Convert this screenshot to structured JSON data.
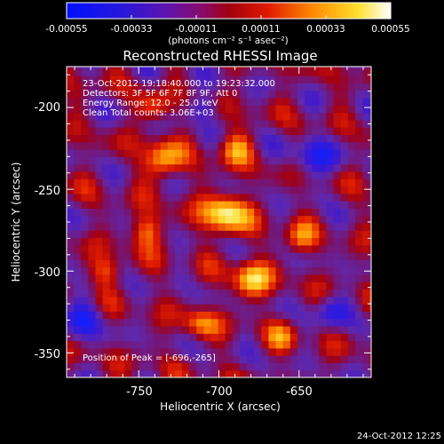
{
  "colorbar": {
    "ticks": [
      "-0.00055",
      "-0.00033",
      "-0.00011",
      "0.00011",
      "0.00033",
      "0.00055"
    ],
    "unit_label": "(photons cm⁻² s⁻¹ asec⁻²)",
    "range": [
      -0.00055,
      0.00055
    ],
    "colormap": [
      "#1020ff",
      "#3d18cf",
      "#6a17a8",
      "#b0157c",
      "#d81a1a",
      "#ff7a00",
      "#ffd000",
      "#ffffff"
    ]
  },
  "overlay": {
    "time_range": "23-Oct-2012 19:18:40.000 to 19:23:32.000",
    "detectors": "Detectors: 3F 5F 6F 7F 8F 9F, Att 0",
    "energy": "Energy Range: 12.0 - 25.0 keV",
    "clean": "Clean    Total counts: 3.06E+03",
    "peak": "Position of Peak = [-696,-265]"
  },
  "footer": {
    "timestamp": "24-Oct-2012 12:25"
  },
  "chart_data": {
    "type": "heatmap",
    "title": "Reconstructed RHESSI Image",
    "xlabel": "Heliocentric X (arcsec)",
    "ylabel": "Heliocentric Y (arcsec)",
    "xlim": [
      -795,
      -605
    ],
    "ylim": [
      -365,
      -175
    ],
    "x_ticks": [
      -750,
      -700,
      -650
    ],
    "y_ticks": [
      -200,
      -250,
      -300,
      -350
    ],
    "peak": [
      -696,
      -265
    ],
    "grid": false,
    "colorbar": "top"
  }
}
